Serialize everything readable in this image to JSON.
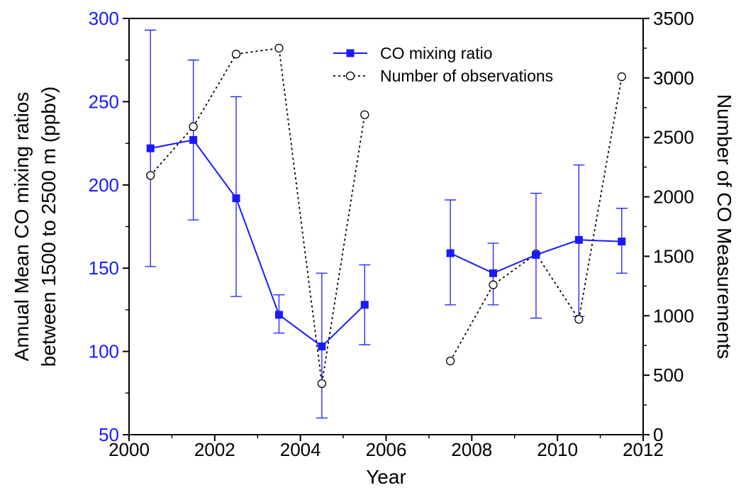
{
  "chart_data": {
    "type": "line",
    "x_axis": {
      "label": "Year",
      "range": [
        2000,
        2012
      ],
      "ticks": [
        2000,
        2002,
        2004,
        2006,
        2008,
        2010,
        2012
      ],
      "tick_labels": [
        "2000",
        "2002",
        "2004",
        "2006",
        "2008",
        "2010",
        "2012"
      ]
    },
    "y_left": {
      "label_lines": [
        "Annual Mean CO mixing ratios",
        "between 1500 to 2500 m (ppbv)"
      ],
      "range": [
        50,
        300
      ],
      "ticks": [
        50,
        100,
        150,
        200,
        250,
        300
      ],
      "tick_labels": [
        "50",
        "100",
        "150",
        "200",
        "250",
        "300"
      ],
      "color": "#1a1aff"
    },
    "y_right": {
      "label": "Number of CO Measurements",
      "range": [
        0,
        3500
      ],
      "ticks": [
        0,
        500,
        1000,
        1500,
        2000,
        2500,
        3000,
        3500
      ],
      "tick_labels": [
        "0",
        "500",
        "1000",
        "1500",
        "2000",
        "2500",
        "3000",
        "3500"
      ]
    },
    "legend_position": "top-center",
    "series": [
      {
        "name": "CO mixing ratio",
        "axis": "left",
        "color": "#1a1aff",
        "marker": "filled-square",
        "line": "solid",
        "segments": [
          [
            {
              "x": 2000.5,
              "y": 222,
              "err_low": 151,
              "err_high": 293
            },
            {
              "x": 2001.5,
              "y": 227,
              "err_low": 179,
              "err_high": 275
            },
            {
              "x": 2002.5,
              "y": 192,
              "err_low": 133,
              "err_high": 253
            },
            {
              "x": 2003.5,
              "y": 122,
              "err_low": 111,
              "err_high": 134
            },
            {
              "x": 2004.5,
              "y": 103,
              "err_low": 60,
              "err_high": 147
            },
            {
              "x": 2005.5,
              "y": 128,
              "err_low": 104,
              "err_high": 152
            }
          ],
          [
            {
              "x": 2007.5,
              "y": 159,
              "err_low": 128,
              "err_high": 191
            },
            {
              "x": 2008.5,
              "y": 147,
              "err_low": 128,
              "err_high": 165
            },
            {
              "x": 2009.5,
              "y": 158,
              "err_low": 120,
              "err_high": 195
            },
            {
              "x": 2010.5,
              "y": 167,
              "err_low": 121,
              "err_high": 212
            },
            {
              "x": 2011.5,
              "y": 166,
              "err_low": 147,
              "err_high": 186
            }
          ]
        ]
      },
      {
        "name": "Number of observations",
        "axis": "right",
        "color": "#000000",
        "marker": "open-circle",
        "line": "dotted",
        "segments": [
          [
            {
              "x": 2000.5,
              "y": 2180
            },
            {
              "x": 2001.5,
              "y": 2590
            },
            {
              "x": 2002.5,
              "y": 3200
            },
            {
              "x": 2003.5,
              "y": 3250
            },
            {
              "x": 2004.5,
              "y": 430
            },
            {
              "x": 2005.5,
              "y": 2690
            }
          ],
          [
            {
              "x": 2007.5,
              "y": 620
            },
            {
              "x": 2008.5,
              "y": 1260
            },
            {
              "x": 2009.5,
              "y": 1520
            },
            {
              "x": 2010.5,
              "y": 970
            },
            {
              "x": 2011.5,
              "y": 3010
            }
          ]
        ]
      }
    ]
  }
}
